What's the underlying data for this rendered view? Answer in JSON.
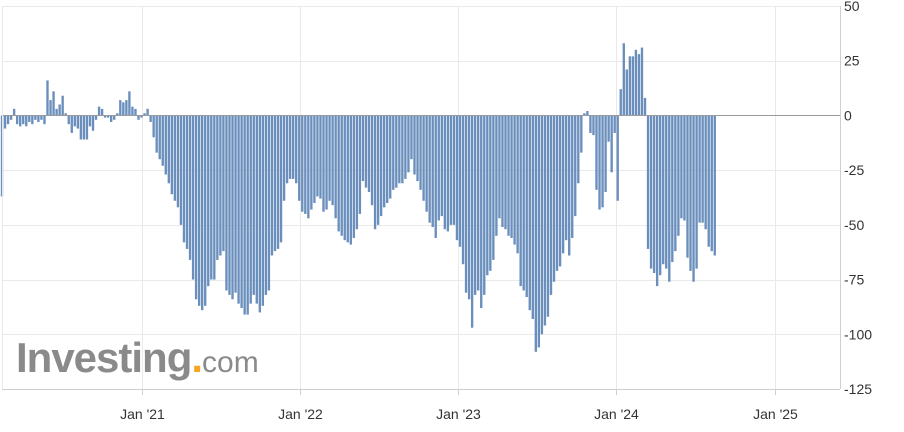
{
  "colors": {
    "bar": "#6a8fbd",
    "bar_stroke": "#5a7fae",
    "grid": "#e9e9e9",
    "zero_line": "#9a9a9a",
    "axis": "#cfcfcf"
  },
  "watermark": {
    "brand": "Investing",
    "suffix": "com"
  },
  "chart_data": {
    "type": "bar",
    "title": "",
    "xlabel": "",
    "ylabel": "",
    "ylim": [
      -125,
      50
    ],
    "yticks": [
      50,
      25,
      0,
      -25,
      -50,
      -75,
      -100,
      -125
    ],
    "ytick_labels": [
      "50",
      "25",
      "0",
      "-25",
      "-50",
      "-75",
      "-100",
      "-125"
    ],
    "xticks": [
      {
        "label": "Jan '21",
        "date": "2021-01-01"
      },
      {
        "label": "Jan '22",
        "date": "2022-01-01"
      },
      {
        "label": "Jan '23",
        "date": "2023-01-01"
      },
      {
        "label": "Jan '24",
        "date": "2024-01-01"
      },
      {
        "label": "Jan '25",
        "date": "2025-01-01"
      }
    ],
    "x_start": "2020-02-14",
    "x_end": "2025-06-01",
    "grid": true,
    "bar_interval_days": 7,
    "series": [
      {
        "first_bar": "2020-02-14",
        "values": [
          -37,
          -6,
          -4,
          -2,
          3,
          -4,
          -5,
          -4,
          -5,
          -3,
          -4,
          -2,
          -3,
          -2,
          -4,
          16,
          7,
          11,
          3,
          5,
          9,
          1,
          -4,
          -8,
          -5,
          -6,
          -11,
          -11,
          -11,
          -5,
          -7,
          -2,
          4,
          3,
          -1,
          -1,
          -3,
          -2,
          1,
          7,
          6,
          7,
          11,
          4,
          3,
          -2,
          -1,
          1,
          3,
          -3,
          -10,
          -17,
          -20,
          -23,
          -27,
          -31,
          -36,
          -39,
          -42,
          -50,
          -58,
          -61,
          -66,
          -75,
          -84,
          -87,
          -89,
          -87,
          -78,
          -75,
          -75,
          -66,
          -64,
          -62,
          -80,
          -82,
          -84,
          -81,
          -86,
          -88,
          -91,
          -91,
          -86,
          -82,
          -86,
          -90,
          -87,
          -82,
          -80,
          -64,
          -62,
          -61,
          -58,
          -39,
          -31,
          -29,
          -29,
          -31,
          -39,
          -44,
          -45,
          -47,
          -43,
          -40,
          -37,
          -38,
          -44,
          -43,
          -39,
          -41,
          -47,
          -53,
          -55,
          -57,
          -58,
          -59,
          -56,
          -52,
          -45,
          -30,
          -33,
          -35,
          -41,
          -52,
          -50,
          -46,
          -42,
          -40,
          -38,
          -34,
          -33,
          -31,
          -31,
          -29,
          -26,
          -20,
          -27,
          -30,
          -34,
          -39,
          -44,
          -49,
          -51,
          -56,
          -48,
          -46,
          -52,
          -53,
          -50,
          -50,
          -57,
          -60,
          -68,
          -81,
          -84,
          -97,
          -82,
          -80,
          -88,
          -82,
          -73,
          -71,
          -66,
          -55,
          -47,
          -51,
          -52,
          -55,
          -56,
          -59,
          -63,
          -78,
          -80,
          -83,
          -89,
          -93,
          -108,
          -106,
          -100,
          -96,
          -92,
          -82,
          -76,
          -71,
          -69,
          -63,
          -57,
          -64,
          -56,
          -46,
          -31,
          -17,
          1,
          2,
          -8,
          -9,
          -34,
          -43,
          -42,
          -35,
          -12,
          -26,
          -8,
          -39,
          12,
          33,
          21,
          27,
          27,
          30,
          28,
          31,
          8,
          -61,
          -70,
          -72,
          -78,
          -73,
          -68,
          -70,
          -76,
          -67,
          -62,
          -55,
          -47,
          -48,
          -65,
          -71,
          -76,
          -70,
          -49,
          -49,
          -52,
          -60,
          -62,
          -64
        ]
      }
    ]
  }
}
